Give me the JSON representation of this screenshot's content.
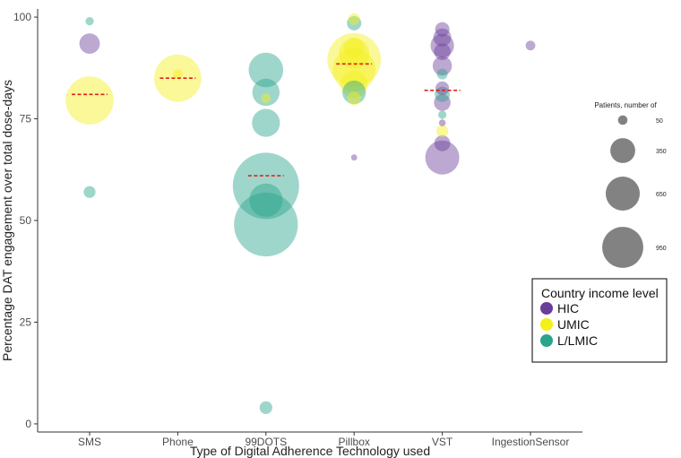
{
  "chart_data": {
    "type": "scatter",
    "subtype": "bubble",
    "xlabel": "Type of Digital Adherence Technology used",
    "ylabel": "Percentage DAT engagement over total dose-days",
    "categories": [
      "SMS",
      "Phone",
      "99DOTS",
      "Pillbox",
      "VST",
      "IngestionSensor"
    ],
    "ylim": [
      -2,
      102
    ],
    "yticks": [
      0,
      25,
      50,
      75,
      100
    ],
    "grid": false,
    "colors": {
      "HIC": "#6a3d9a",
      "UMIC": "#f5ef1a",
      "L/LMIC": "#2aa58c"
    },
    "points": [
      {
        "category": "SMS",
        "value": 99,
        "patients": 15,
        "group": "L/LMIC"
      },
      {
        "category": "SMS",
        "value": 93.5,
        "patients": 90,
        "group": "HIC"
      },
      {
        "category": "SMS",
        "value": 79.5,
        "patients": 500,
        "group": "UMIC"
      },
      {
        "category": "SMS",
        "value": 57,
        "patients": 30,
        "group": "L/LMIC"
      },
      {
        "category": "Phone",
        "value": 85,
        "patients": 480,
        "group": "UMIC"
      },
      {
        "category": "Phone",
        "value": 86,
        "patients": 20,
        "group": "UMIC"
      },
      {
        "category": "99DOTS",
        "value": 87,
        "patients": 260,
        "group": "L/LMIC"
      },
      {
        "category": "99DOTS",
        "value": 81.5,
        "patients": 160,
        "group": "L/LMIC"
      },
      {
        "category": "99DOTS",
        "value": 80,
        "patients": 20,
        "group": "UMIC"
      },
      {
        "category": "99DOTS",
        "value": 74,
        "patients": 170,
        "group": "L/LMIC"
      },
      {
        "category": "99DOTS",
        "value": 58.5,
        "patients": 950,
        "group": "L/LMIC"
      },
      {
        "category": "99DOTS",
        "value": 55,
        "patients": 240,
        "group": "L/LMIC"
      },
      {
        "category": "99DOTS",
        "value": 49,
        "patients": 880,
        "group": "L/LMIC"
      },
      {
        "category": "99DOTS",
        "value": 4,
        "patients": 35,
        "group": "L/LMIC"
      },
      {
        "category": "Pillbox",
        "value": 99.5,
        "patients": 30,
        "group": "UMIC"
      },
      {
        "category": "Pillbox",
        "value": 98.5,
        "patients": 45,
        "group": "L/LMIC"
      },
      {
        "category": "Pillbox",
        "value": 92.5,
        "patients": 90,
        "group": "UMIC"
      },
      {
        "category": "Pillbox",
        "value": 91,
        "patients": 200,
        "group": "UMIC"
      },
      {
        "category": "Pillbox",
        "value": 89.5,
        "patients": 620,
        "group": "UMIC"
      },
      {
        "category": "Pillbox",
        "value": 87,
        "patients": 400,
        "group": "UMIC"
      },
      {
        "category": "Pillbox",
        "value": 83.5,
        "patients": 160,
        "group": "UMIC"
      },
      {
        "category": "Pillbox",
        "value": 81.5,
        "patients": 120,
        "group": "L/LMIC"
      },
      {
        "category": "Pillbox",
        "value": 80,
        "patients": 40,
        "group": "UMIC"
      },
      {
        "category": "Pillbox",
        "value": 65.5,
        "patients": 8,
        "group": "HIC"
      },
      {
        "category": "VST",
        "value": 97,
        "patients": 45,
        "group": "HIC"
      },
      {
        "category": "VST",
        "value": 95,
        "patients": 70,
        "group": "HIC"
      },
      {
        "category": "VST",
        "value": 93,
        "patients": 120,
        "group": "HIC"
      },
      {
        "category": "VST",
        "value": 91.5,
        "patients": 60,
        "group": "HIC"
      },
      {
        "category": "VST",
        "value": 88,
        "patients": 80,
        "group": "HIC"
      },
      {
        "category": "VST",
        "value": 86,
        "patients": 25,
        "group": "L/LMIC"
      },
      {
        "category": "VST",
        "value": 82.5,
        "patients": 40,
        "group": "HIC"
      },
      {
        "category": "VST",
        "value": 81,
        "patients": 50,
        "group": "L/LMIC"
      },
      {
        "category": "VST",
        "value": 79,
        "patients": 60,
        "group": "HIC"
      },
      {
        "category": "VST",
        "value": 76,
        "patients": 15,
        "group": "L/LMIC"
      },
      {
        "category": "VST",
        "value": 74,
        "patients": 10,
        "group": "HIC"
      },
      {
        "category": "VST",
        "value": 72,
        "patients": 30,
        "group": "UMIC"
      },
      {
        "category": "VST",
        "value": 69,
        "patients": 55,
        "group": "HIC"
      },
      {
        "category": "VST",
        "value": 65.5,
        "patients": 250,
        "group": "HIC"
      },
      {
        "category": "IngestionSensor",
        "value": 93,
        "patients": 20,
        "group": "HIC"
      }
    ],
    "medians": [
      {
        "category": "SMS",
        "value": 81
      },
      {
        "category": "Phone",
        "value": 85
      },
      {
        "category": "99DOTS",
        "value": 61
      },
      {
        "category": "Pillbox",
        "value": 88.5
      },
      {
        "category": "VST",
        "value": 82
      }
    ],
    "size_legend": {
      "title": "Patients, number of",
      "entries": [
        50,
        350,
        650,
        950
      ]
    },
    "color_legend": {
      "title": "Country income level",
      "entries": [
        "HIC",
        "UMIC",
        "L/LMIC"
      ]
    }
  }
}
